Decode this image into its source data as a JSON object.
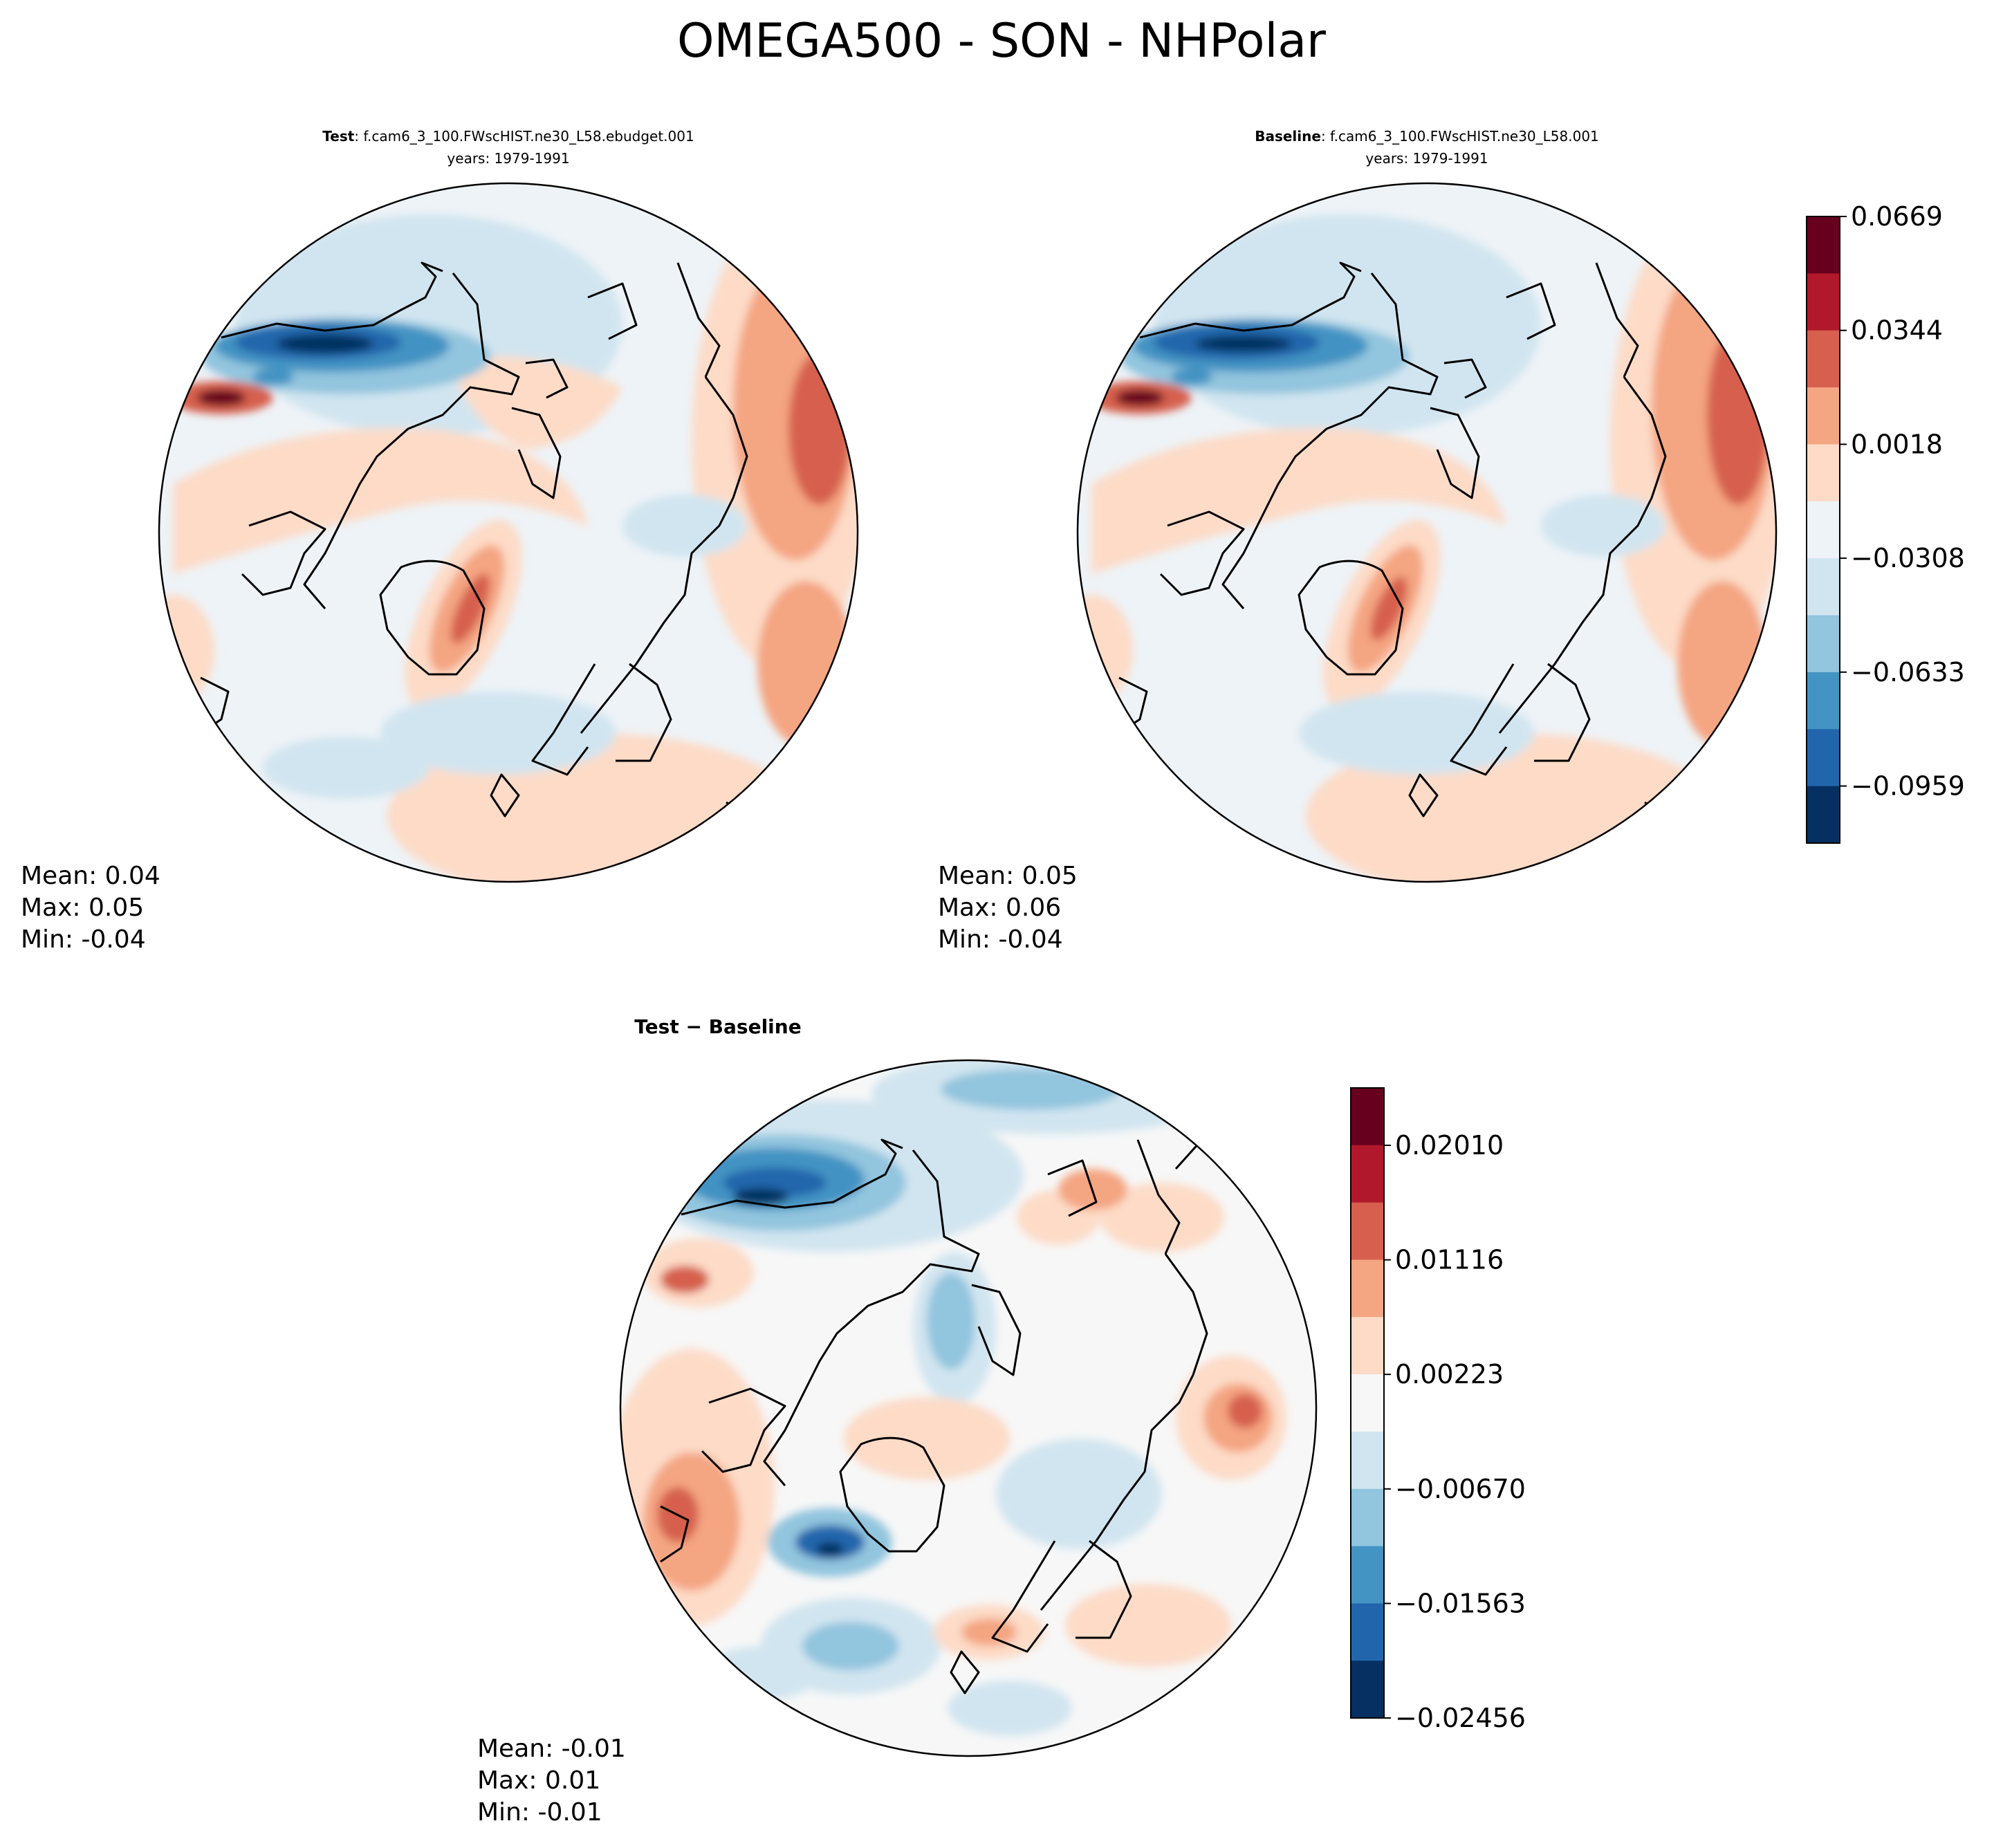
{
  "figure": {
    "title": "OMEGA500 - SON - NHPolar"
  },
  "panels": [
    {
      "id": "test",
      "title_bold": "Test",
      "title_rest": ": f.cam6_3_100.FWscHIST.ne30_L58.ebudget.001",
      "subtitle": "years: 1979-1991",
      "stats": {
        "mean": "Mean:  0.04",
        "max": "Max:  0.05",
        "min": "Min: -0.04"
      }
    },
    {
      "id": "baseline",
      "title_bold": "Baseline",
      "title_rest": ": f.cam6_3_100.FWscHIST.ne30_L58.001",
      "subtitle": "years: 1979-1991",
      "stats": {
        "mean": "Mean:  0.05",
        "max": "Max:  0.06",
        "min": "Min: -0.04"
      }
    },
    {
      "id": "diff",
      "title_bold": "Test − Baseline",
      "stats": {
        "mean": "Mean: -0.01",
        "max": "Max:  0.01",
        "min": "Min: -0.01"
      }
    }
  ],
  "colorbars": {
    "main": {
      "ticks": [
        "0.0669",
        "0.0344",
        "0.0018",
        "−0.0308",
        "−0.0633",
        "−0.0959"
      ],
      "colors": [
        "#67001f",
        "#b2182b",
        "#d6604d",
        "#f4a582",
        "#fddbc7",
        "#eef3f7",
        "#d1e5f0",
        "#92c5de",
        "#4393c3",
        "#2166ac",
        "#053061"
      ]
    },
    "diff": {
      "ticks": [
        "0.02010",
        "0.01116",
        "0.00223",
        "−0.00670",
        "−0.01563",
        "−0.02456"
      ],
      "colors": [
        "#67001f",
        "#b2182b",
        "#d6604d",
        "#f4a582",
        "#fddbc7",
        "#f7f7f7",
        "#d1e5f0",
        "#92c5de",
        "#4393c3",
        "#2166ac",
        "#053061"
      ]
    }
  },
  "chart_data": [
    {
      "type": "heatmap",
      "title": "Test: f.cam6_3_100.FWscHIST.ne30_L58.ebudget.001",
      "variable": "OMEGA500",
      "season": "SON",
      "region": "NHPolar",
      "years": "1979-1991",
      "stats": {
        "mean": 0.04,
        "max": 0.05,
        "min": -0.04
      },
      "colorbar_ticks": [
        0.0669,
        0.0344,
        0.0018,
        -0.0308,
        -0.0633,
        -0.0959
      ]
    },
    {
      "type": "heatmap",
      "title": "Baseline: f.cam6_3_100.FWscHIST.ne30_L58.001",
      "variable": "OMEGA500",
      "season": "SON",
      "region": "NHPolar",
      "years": "1979-1991",
      "stats": {
        "mean": 0.05,
        "max": 0.06,
        "min": -0.04
      },
      "colorbar_ticks": [
        0.0669,
        0.0344,
        0.0018,
        -0.0308,
        -0.0633,
        -0.0959
      ]
    },
    {
      "type": "heatmap",
      "title": "Test − Baseline",
      "variable": "OMEGA500",
      "season": "SON",
      "region": "NHPolar",
      "stats": {
        "mean": -0.01,
        "max": 0.01,
        "min": -0.01
      },
      "colorbar_ticks": [
        0.0201,
        0.01116,
        0.00223,
        -0.0067,
        -0.01563,
        -0.02456
      ]
    }
  ]
}
